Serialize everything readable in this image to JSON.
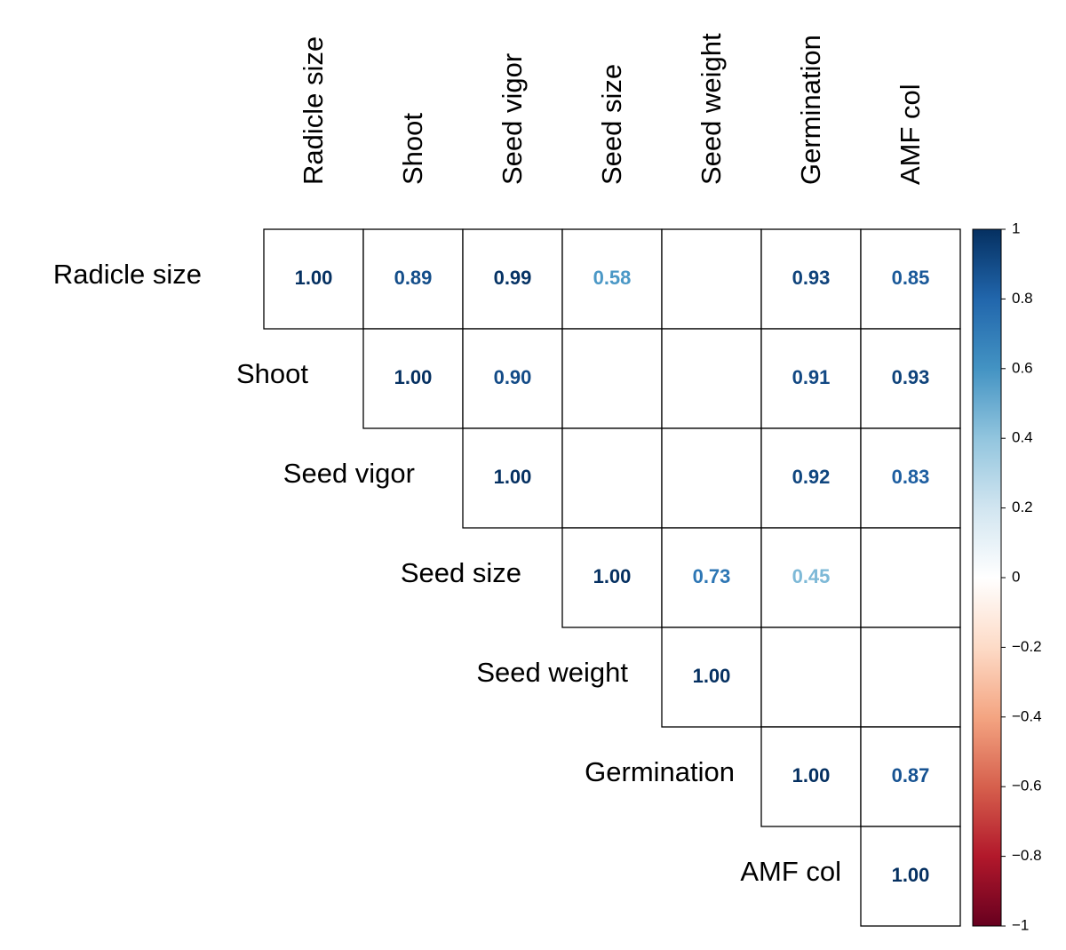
{
  "chart_data": {
    "type": "corrplot",
    "triangle": "upper",
    "variables": [
      "Radicle size",
      "Shoot",
      "Seed vigor",
      "Seed size",
      "Seed weight",
      "Germination",
      "AMF col"
    ],
    "values": [
      [
        1.0,
        0.89,
        0.99,
        0.58,
        null,
        0.93,
        0.85
      ],
      [
        null,
        1.0,
        0.9,
        null,
        null,
        0.91,
        0.93
      ],
      [
        null,
        null,
        1.0,
        null,
        null,
        0.92,
        0.83
      ],
      [
        null,
        null,
        null,
        1.0,
        0.73,
        0.45,
        null
      ],
      [
        null,
        null,
        null,
        null,
        1.0,
        null,
        null
      ],
      [
        null,
        null,
        null,
        null,
        null,
        1.0,
        0.87
      ],
      [
        null,
        null,
        null,
        null,
        null,
        null,
        1.0
      ]
    ],
    "value_labels": [
      [
        "1.00",
        "0.89",
        "0.99",
        "0.58",
        null,
        "0.93",
        "0.85"
      ],
      [
        null,
        "1.00",
        "0.90",
        null,
        null,
        "0.91",
        "0.93"
      ],
      [
        null,
        null,
        "1.00",
        null,
        null,
        "0.92",
        "0.83"
      ],
      [
        null,
        null,
        null,
        "1.00",
        "0.73",
        "0.45",
        null
      ],
      [
        null,
        null,
        null,
        null,
        "1.00",
        null,
        null
      ],
      [
        null,
        null,
        null,
        null,
        null,
        "1.00",
        "0.87"
      ],
      [
        null,
        null,
        null,
        null,
        null,
        null,
        "1.00"
      ]
    ],
    "colorscale": [
      "#67001F",
      "#B2182B",
      "#D6604D",
      "#F4A582",
      "#FDDBC7",
      "#FFFFFF",
      "#D1E5F0",
      "#92C5DE",
      "#4393C3",
      "#2166AC",
      "#053061"
    ],
    "clim": [
      -1,
      1
    ],
    "cticks": [
      {
        "value": -1,
        "label": "−1"
      },
      {
        "value": -0.8,
        "label": "−0.8"
      },
      {
        "value": -0.6,
        "label": "−0.6"
      },
      {
        "value": -0.4,
        "label": "−0.4"
      },
      {
        "value": -0.2,
        "label": "−0.2"
      },
      0,
      0.2,
      0.4,
      0.6,
      0.8,
      1
    ]
  }
}
